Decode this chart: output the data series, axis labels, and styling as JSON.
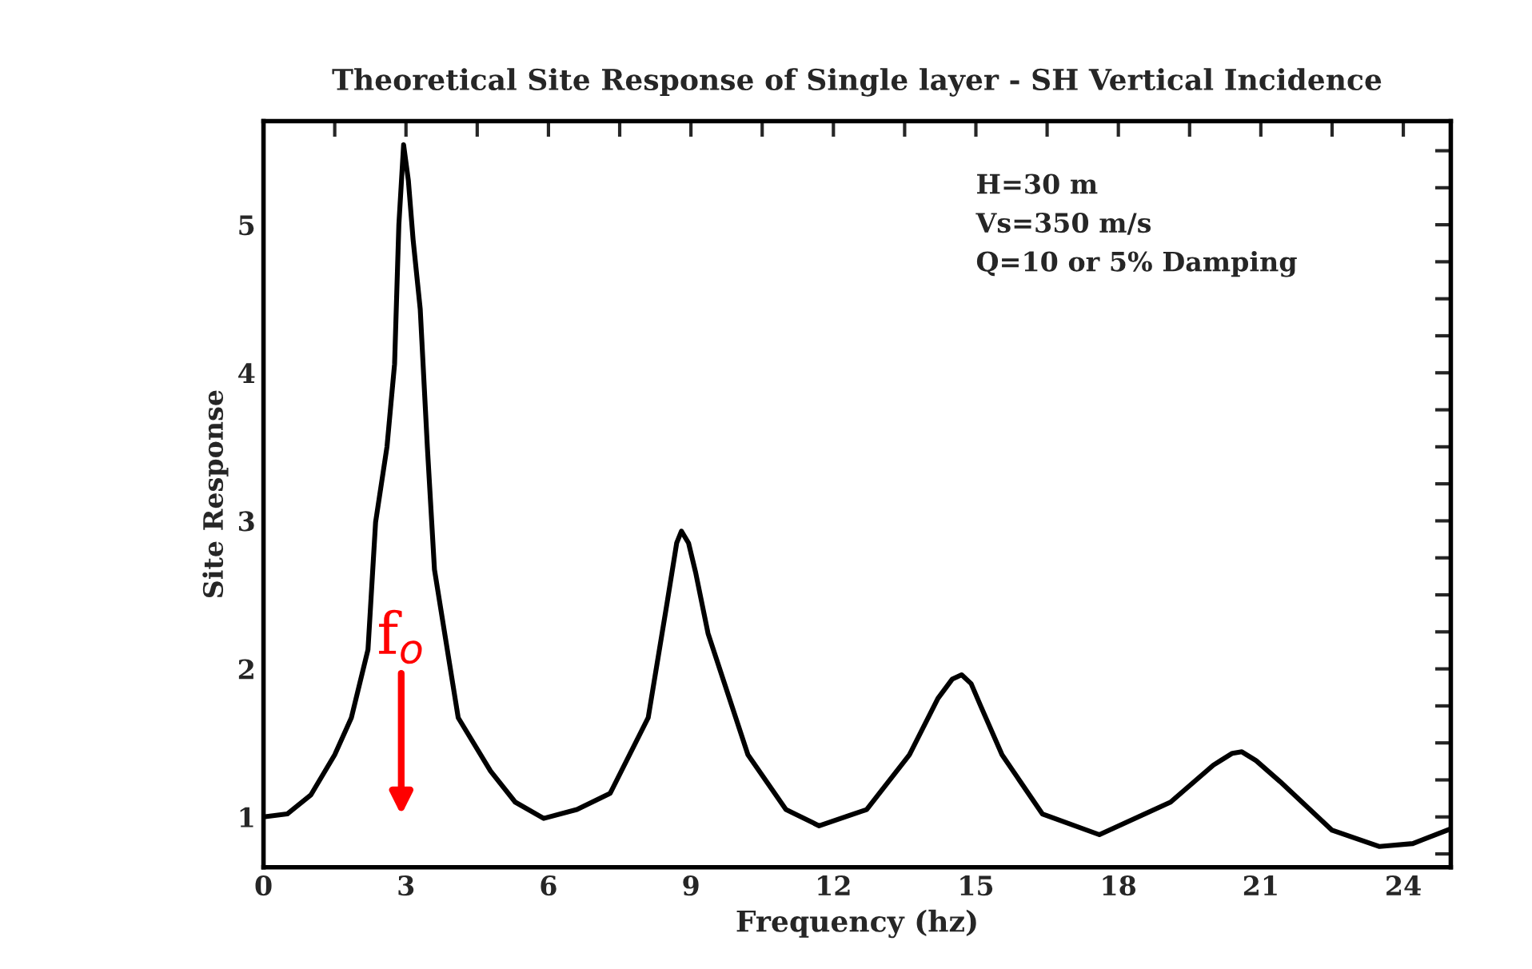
{
  "chart_data": {
    "type": "line",
    "title": "Theoretical Site Response of Single layer - SH Vertical Incidence",
    "xlabel": "Frequency (hz)",
    "ylabel": "Site Response",
    "series": [
      {
        "color": "#000000",
        "x": [
          0,
          0.5,
          1.0,
          1.5,
          1.85,
          2.2,
          2.36,
          2.6,
          2.76,
          2.85,
          2.95,
          3.05,
          3.15,
          3.3,
          3.45,
          3.6,
          4.1,
          4.78,
          5.3,
          5.9,
          6.6,
          7.3,
          8.1,
          8.5,
          8.7,
          8.8,
          8.95,
          9.1,
          9.36,
          10.2,
          11.0,
          11.7,
          12.7,
          13.6,
          14.2,
          14.5,
          14.7,
          14.9,
          15.1,
          15.55,
          16.4,
          17.6,
          19.1,
          20.0,
          20.4,
          20.6,
          20.9,
          21.4,
          22.5,
          23.5,
          24.2,
          25
        ],
        "values": [
          1.0,
          1.02,
          1.15,
          1.42,
          1.67,
          2.13,
          2.99,
          3.5,
          4.06,
          5.0,
          5.54,
          5.3,
          4.9,
          4.43,
          3.5,
          2.67,
          1.67,
          1.31,
          1.1,
          0.99,
          1.05,
          1.16,
          1.67,
          2.45,
          2.85,
          2.93,
          2.85,
          2.65,
          2.24,
          1.42,
          1.05,
          0.94,
          1.05,
          1.42,
          1.8,
          1.93,
          1.96,
          1.9,
          1.75,
          1.42,
          1.02,
          0.88,
          1.1,
          1.35,
          1.43,
          1.44,
          1.38,
          1.24,
          0.91,
          0.8,
          0.82,
          0.92
        ]
      }
    ],
    "xlim": [
      0,
      25
    ],
    "ylim": [
      0.66,
      5.7
    ],
    "xticks": [
      0,
      {
        "value": 1.5,
        "label": null
      },
      3,
      {
        "value": 4.5,
        "label": null
      },
      6,
      {
        "value": 7.5,
        "label": null
      },
      9,
      {
        "value": 10.5,
        "label": null
      },
      12,
      {
        "value": 13.5,
        "label": null
      },
      15,
      {
        "value": 16.5,
        "label": null
      },
      18,
      {
        "value": 19.5,
        "label": null
      },
      21,
      {
        "value": 22.5,
        "label": null
      },
      24
    ],
    "yticks": [
      {
        "value": 0.75,
        "label": null
      },
      1,
      {
        "value": 1.25,
        "label": null
      },
      {
        "value": 1.5,
        "label": null
      },
      {
        "value": 1.75,
        "label": null
      },
      2,
      {
        "value": 2.25,
        "label": null
      },
      {
        "value": 2.5,
        "label": null
      },
      {
        "value": 2.75,
        "label": null
      },
      3,
      {
        "value": 3.25,
        "label": null
      },
      {
        "value": 3.5,
        "label": null
      },
      {
        "value": 3.75,
        "label": null
      },
      4,
      {
        "value": 4.25,
        "label": null
      },
      {
        "value": 4.5,
        "label": null
      },
      {
        "value": 4.75,
        "label": null
      },
      5,
      {
        "value": 5.25,
        "label": null
      },
      {
        "value": 5.5,
        "label": null
      }
    ],
    "grid": false,
    "marker": "none",
    "line_style": "solid",
    "annotations": [
      "H=30 m",
      "Vs=350 m/s",
      "Q=10 or 5% Damping",
      "f$_{o}$"
    ]
  }
}
